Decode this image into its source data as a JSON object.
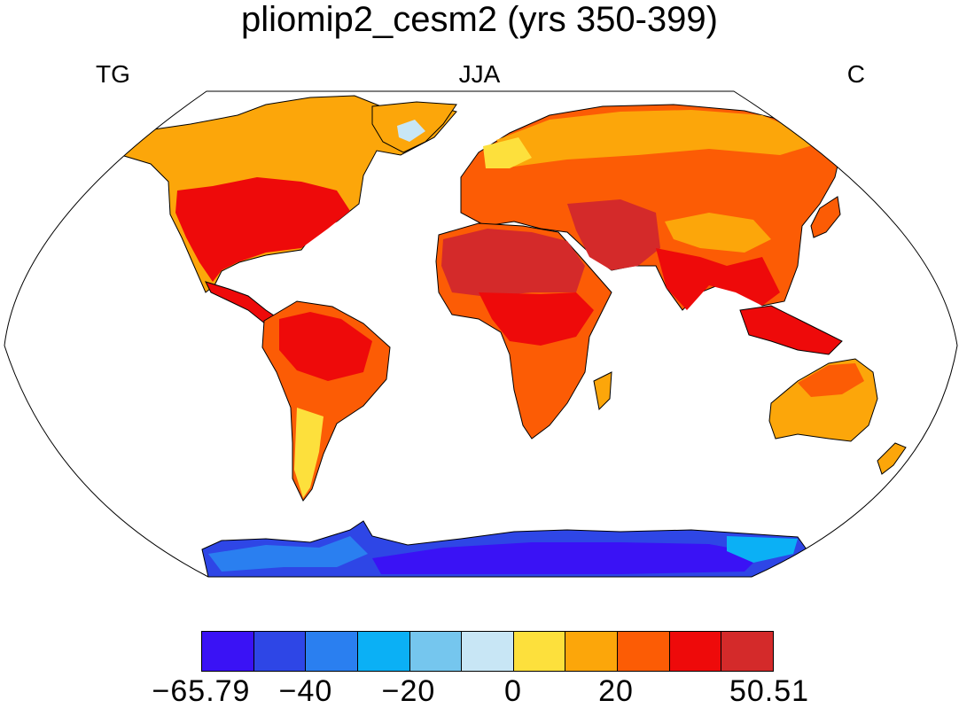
{
  "title": "pliomip2_cesm2 (yrs 350-399)",
  "corner_labels": {
    "left": "TG",
    "center": "JJA",
    "right": "C"
  },
  "colorbar": {
    "colors": [
      "#3a12f5",
      "#2e46e6",
      "#2a7ff0",
      "#0bb0f5",
      "#75c6ee",
      "#c8e6f5",
      "#fde03c",
      "#fca60a",
      "#fc5c05",
      "#ee0a0a",
      "#d42a2a"
    ],
    "labels": [
      "−65.79",
      "−40",
      "−20",
      "0",
      "20",
      "50.51"
    ]
  },
  "map": {
    "projection": "Robinson",
    "variable": "TG",
    "season": "JJA",
    "units": "C"
  }
}
